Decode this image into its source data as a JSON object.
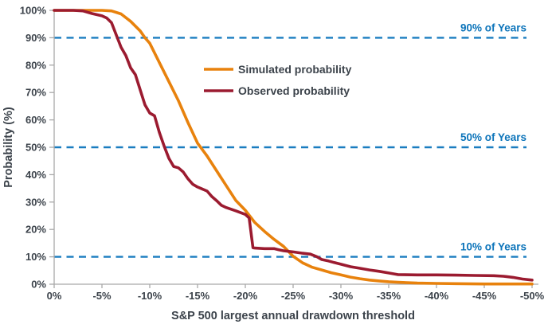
{
  "chart_data": {
    "type": "line",
    "title": "",
    "xlabel": "S&P 500 largest annual drawdown threshold",
    "ylabel": "Probability (%)",
    "xlim": [
      0,
      -50
    ],
    "ylim": [
      0,
      100
    ],
    "grid": false,
    "legend_position": "upper-center-left",
    "x_tick_values": [
      0,
      -5,
      -10,
      -15,
      -20,
      -25,
      -30,
      -35,
      -40,
      -45,
      -50
    ],
    "x_ticks": [
      "0%",
      "-5%",
      "-10%",
      "-15%",
      "-20%",
      "-25%",
      "-30%",
      "-35%",
      "-40%",
      "-45%",
      "-50%"
    ],
    "y_tick_values": [
      0,
      10,
      20,
      30,
      40,
      50,
      60,
      70,
      80,
      90,
      100
    ],
    "y_ticks": [
      "0%",
      "10%",
      "20%",
      "30%",
      "40%",
      "50%",
      "60%",
      "70%",
      "80%",
      "90%",
      "100%"
    ],
    "series": [
      {
        "name": "Simulated probability",
        "color": "#E8820D",
        "x": [
          0,
          -2,
          -4,
          -5,
          -6,
          -7,
          -8,
          -9,
          -9.5,
          -10,
          -11,
          -12,
          -13,
          -14,
          -15,
          -16,
          -17,
          -18,
          -19,
          -20,
          -21,
          -22,
          -23,
          -24,
          -25,
          -26,
          -27,
          -28,
          -29,
          -30,
          -31,
          -32,
          -33,
          -34,
          -35,
          -36,
          -38,
          -40,
          -42,
          -45,
          -50
        ],
        "y": [
          100,
          100,
          100,
          100,
          99.8,
          98.7,
          96,
          92.5,
          90,
          88,
          81,
          74,
          67,
          59,
          51.5,
          46.8,
          41.4,
          36,
          30.6,
          27,
          22.5,
          19.3,
          16.4,
          13.8,
          10.2,
          7.8,
          6.2,
          5.2,
          4.2,
          3.4,
          2.6,
          2,
          1.5,
          1.2,
          0.9,
          0.7,
          0.4,
          0.3,
          0.2,
          0.1,
          0.1
        ]
      },
      {
        "name": "Observed probability",
        "color": "#9B1B30",
        "x": [
          0,
          -2,
          -3,
          -4,
          -5,
          -5.5,
          -6,
          -6.5,
          -7,
          -7.5,
          -8,
          -8.5,
          -9,
          -9.5,
          -10,
          -10.5,
          -11,
          -11.5,
          -12,
          -12.5,
          -13,
          -13.5,
          -14,
          -14.5,
          -15,
          -16,
          -16.5,
          -17,
          -17.5,
          -18,
          -19,
          -20,
          -20.4,
          -20.8,
          -21,
          -22,
          -23,
          -23.5,
          -24,
          -25,
          -26,
          -26.8,
          -27.5,
          -28,
          -28.7,
          -29.3,
          -30,
          -31,
          -32,
          -33,
          -34,
          -35,
          -36,
          -38,
          -40,
          -42,
          -44,
          -46,
          -47,
          -48,
          -49,
          -50
        ],
        "y": [
          100,
          100,
          99.8,
          98.8,
          98,
          97.2,
          95.5,
          91,
          86.5,
          83.5,
          79,
          76.5,
          71,
          65.5,
          62.5,
          61.5,
          55.5,
          50.5,
          46,
          43,
          42.5,
          41,
          38.5,
          36.5,
          35.5,
          34,
          32,
          30.5,
          28.8,
          28,
          26.8,
          25.5,
          24.2,
          13.3,
          13.2,
          13,
          13,
          12.6,
          12.2,
          11.8,
          11.3,
          11,
          10,
          9,
          8.5,
          7.9,
          7.3,
          6.4,
          5.8,
          5.2,
          4.7,
          4.1,
          3.5,
          3.4,
          3.4,
          3.3,
          3.2,
          3.1,
          2.9,
          2.5,
          1.9,
          1.5
        ]
      }
    ],
    "reference_lines": [
      {
        "label": "90% of Years",
        "value": 90
      },
      {
        "label": "50% of Years",
        "value": 50
      },
      {
        "label": "10% of Years",
        "value": 10
      }
    ],
    "reference_color": "#1A7DC0",
    "reference_label_color": "#0C74BA"
  },
  "colors": {
    "axis": "#A9A9A9",
    "text": "#3C434B",
    "background": "#FFFFFF"
  }
}
